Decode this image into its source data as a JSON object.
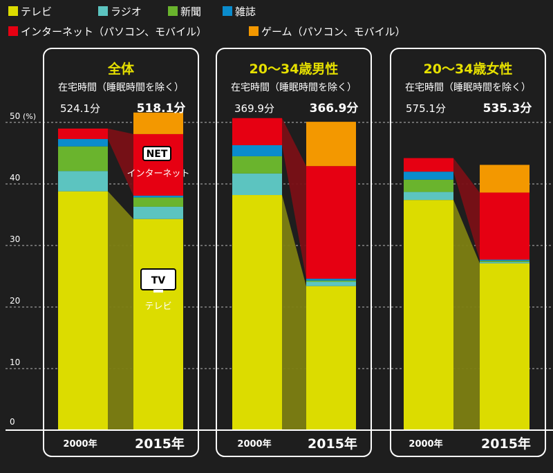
{
  "legend": [
    {
      "name": "テレビ",
      "color": "#dcdc00"
    },
    {
      "name": "ラジオ",
      "color": "#5cc4c0"
    },
    {
      "name": "新聞",
      "color": "#6ab42d"
    },
    {
      "name": "雑誌",
      "color": "#0a8ccd"
    },
    {
      "name": "インターネット（パソコン、モバイル）",
      "color": "#e60012"
    },
    {
      "name": "ゲーム（パソコン、モバイル）",
      "color": "#f39800"
    }
  ],
  "y_unit": "(%)",
  "icons": {
    "net_box": "NET",
    "net_label": "インターネット",
    "tv_box": "TV",
    "tv_label": "テレビ"
  },
  "chart_data": {
    "type": "bar",
    "stacked": true,
    "ylim": [
      0,
      50
    ],
    "yticks": [
      0,
      10,
      20,
      30,
      40,
      50
    ],
    "grid": true,
    "legend_position": "top-left",
    "series_order": [
      "テレビ",
      "ラジオ",
      "新聞",
      "雑誌",
      "インターネット（パソコン、モバイル）",
      "ゲーム（パソコン、モバイル）"
    ],
    "panels": [
      {
        "title": "全体",
        "subtitle": "在宅時間（睡眠時間を除く）",
        "bars": [
          {
            "year": "2000年",
            "total": "524.1分",
            "values": [
              38.8,
              3.3,
              4.0,
              1.2,
              1.7,
              0
            ]
          },
          {
            "year": "2015年",
            "total": "518.1分",
            "values": [
              34.3,
              2.0,
              1.5,
              0.3,
              10.0,
              3.5
            ]
          }
        ]
      },
      {
        "title": "20～34歳男性",
        "subtitle": "在宅時間（睡眠時間を除く）",
        "bars": [
          {
            "year": "2000年",
            "total": "369.9分",
            "values": [
              38.2,
              3.5,
              2.8,
              1.8,
              4.4,
              0
            ]
          },
          {
            "year": "2015年",
            "total": "366.9分",
            "values": [
              23.4,
              0.7,
              0.2,
              0.3,
              18.3,
              7.2
            ]
          }
        ]
      },
      {
        "title": "20～34歳女性",
        "subtitle": "在宅時間（睡眠時間を除く）",
        "bars": [
          {
            "year": "2000年",
            "total": "575.1分",
            "values": [
              37.4,
              1.3,
              2.0,
              1.3,
              2.2,
              0
            ]
          },
          {
            "year": "2015年",
            "total": "535.3分",
            "values": [
              27.1,
              0.2,
              0.2,
              0.2,
              10.9,
              4.5
            ]
          }
        ]
      }
    ]
  }
}
